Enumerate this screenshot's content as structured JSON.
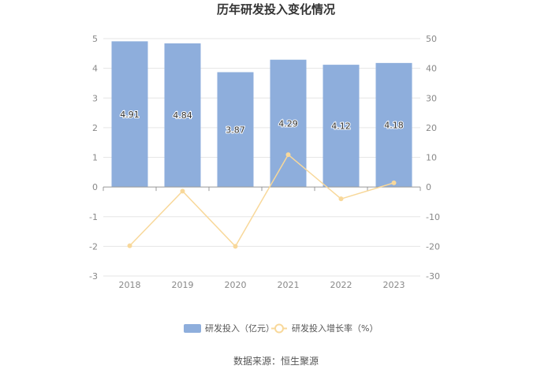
{
  "source": "数据来源：恒生聚源",
  "chart_data": {
    "type": "bar",
    "title": "历年研发投入变化情况",
    "categories": [
      "2018",
      "2019",
      "2020",
      "2021",
      "2022",
      "2023"
    ],
    "series": [
      {
        "name": "研发投入（亿元）",
        "type": "bar",
        "axis": "left",
        "color": "#8eaedc",
        "values": [
          4.91,
          4.84,
          3.87,
          4.29,
          4.12,
          4.18
        ],
        "labels": [
          "4.91",
          "4.84",
          "3.87",
          "4.29",
          "4.12",
          "4.18"
        ]
      },
      {
        "name": "研发投入增长率（%）",
        "type": "line",
        "axis": "right",
        "color": "#f8d89a",
        "values": [
          -19.8,
          -1.4,
          -20.0,
          10.9,
          -4.0,
          1.4
        ]
      }
    ],
    "y_left": {
      "range": [
        -3,
        5
      ],
      "ticks": [
        "-3",
        "-2",
        "-1",
        "0",
        "1",
        "2",
        "3",
        "4",
        "5"
      ]
    },
    "y_right": {
      "range": [
        -30,
        50
      ],
      "ticks": [
        "-30",
        "-20",
        "-10",
        "0",
        "10",
        "20",
        "30",
        "40",
        "50"
      ]
    },
    "grid": true,
    "legend_position": "bottom"
  }
}
